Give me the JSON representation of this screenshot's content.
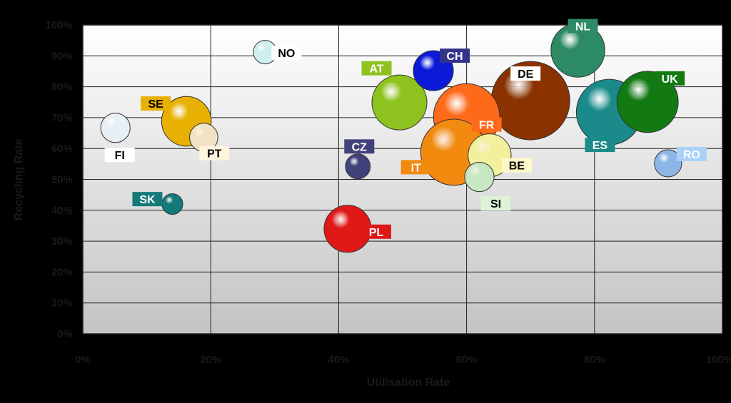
{
  "chart_data": {
    "type": "scatter",
    "xlabel": "Utilisation Rate",
    "ylabel": "Recycling Rate",
    "xlim": [
      0,
      1
    ],
    "ylim": [
      0,
      1
    ],
    "grid": true,
    "x_ticks": [
      "0%",
      "20%",
      "40%",
      "60%",
      "80%",
      "100%"
    ],
    "y_ticks": [
      "0%",
      "10%",
      "20%",
      "30%",
      "40%",
      "50%",
      "60%",
      "70%",
      "80%",
      "90%",
      "100%"
    ],
    "series": [
      {
        "name": "NO",
        "x": 0.285,
        "y": 0.912,
        "size": 0.09,
        "color": "#cfeeee",
        "label_color": "#ffffff",
        "label_text": "#000000"
      },
      {
        "name": "AT",
        "x": 0.495,
        "y": 0.749,
        "size": 0.49,
        "color": "#8dc21f",
        "label_color": "#8dc21f",
        "label_text": "#ffffff"
      },
      {
        "name": "CH",
        "x": 0.548,
        "y": 0.852,
        "size": 0.26,
        "color": "#0a1ad6",
        "label_color": "#33338a",
        "label_text": "#ffffff"
      },
      {
        "name": "NL",
        "x": 0.774,
        "y": 0.918,
        "size": 0.47,
        "color": "#2c8a64",
        "label_color": "#2c8a64",
        "label_text": "#ffffff"
      },
      {
        "name": "DE",
        "x": 0.7,
        "y": 0.755,
        "size": 1.0,
        "color": "#8a3200",
        "label_color": "#ffffff",
        "label_text": "#000000"
      },
      {
        "name": "UK",
        "x": 0.883,
        "y": 0.751,
        "size": 0.61,
        "color": "#137a13",
        "label_color": "#137a13",
        "label_text": "#ffffff"
      },
      {
        "name": "SE",
        "x": 0.162,
        "y": 0.688,
        "size": 0.4,
        "color": "#e8b000",
        "label_color": "#e8b000",
        "label_text": "#000000"
      },
      {
        "name": "FI",
        "x": 0.051,
        "y": 0.667,
        "size": 0.14,
        "color": "#e6f0f5",
        "label_color": "#ffffff",
        "label_text": "#000000"
      },
      {
        "name": "PT",
        "x": 0.189,
        "y": 0.636,
        "size": 0.13,
        "color": "#f2e2c4",
        "label_color": "#fff5df",
        "label_text": "#000000"
      },
      {
        "name": "FR",
        "x": 0.6,
        "y": 0.703,
        "size": 0.71,
        "color": "#ff6a1a",
        "label_color": "#ff6a1a",
        "label_text": "#ffffff"
      },
      {
        "name": "ES",
        "x": 0.823,
        "y": 0.718,
        "size": 0.7,
        "color": "#1a8a8a",
        "label_color": "#1a8a8a",
        "label_text": "#ffffff"
      },
      {
        "name": "IT",
        "x": 0.58,
        "y": 0.588,
        "size": 0.71,
        "color": "#f28a10",
        "label_color": "#f28a10",
        "label_text": "#ffffff"
      },
      {
        "name": "CZ",
        "x": 0.43,
        "y": 0.542,
        "size": 0.1,
        "color": "#42427a",
        "label_color": "#42427a",
        "label_text": "#ffffff"
      },
      {
        "name": "BE",
        "x": 0.636,
        "y": 0.578,
        "size": 0.3,
        "color": "#f2f09a",
        "label_color": "#fff8c8",
        "label_text": "#000000"
      },
      {
        "name": "SI",
        "x": 0.62,
        "y": 0.508,
        "size": 0.14,
        "color": "#c7e6c2",
        "label_color": "#ddf2d6",
        "label_text": "#000000"
      },
      {
        "name": "RO",
        "x": 0.915,
        "y": 0.552,
        "size": 0.12,
        "color": "#8cb6e6",
        "label_color": "#a8d0f8",
        "label_text": "#ffffff"
      },
      {
        "name": "SK",
        "x": 0.14,
        "y": 0.42,
        "size": 0.07,
        "color": "#137a7a",
        "label_color": "#137a7a",
        "label_text": "#ffffff"
      },
      {
        "name": "PL",
        "x": 0.414,
        "y": 0.34,
        "size": 0.36,
        "color": "#e01818",
        "label_color": "#e01818",
        "label_text": "#ffffff"
      }
    ]
  }
}
